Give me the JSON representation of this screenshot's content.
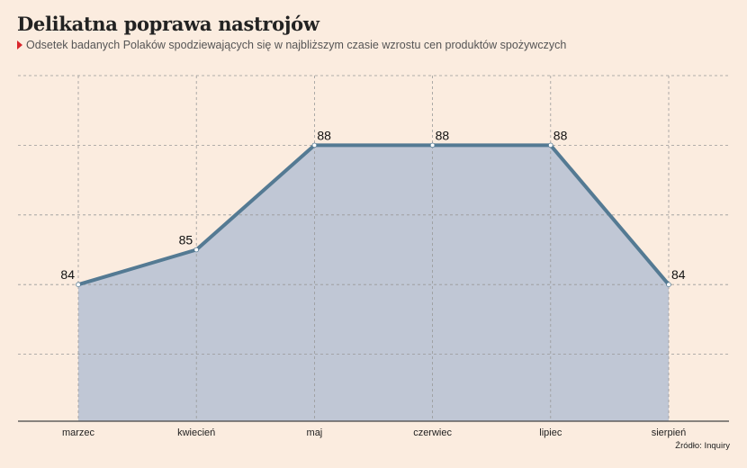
{
  "header": {
    "title": "Delikatna poprawa nastrojów",
    "subtitle": "Odsetek badanych Polaków spodziewających się w najbliższym czasie wzrostu cen produktów spożywczych",
    "marker_color": "#d9262c"
  },
  "source": "Źródło: Inquiry",
  "colors": {
    "line": "#547a93",
    "area": "#c0c7d5",
    "grid": "#999999",
    "background": "#fbecdf"
  },
  "chart_data": {
    "type": "area",
    "categories": [
      "marzec",
      "kwiecień",
      "maj",
      "czerwiec",
      "lipiec",
      "sierpień"
    ],
    "series": [
      {
        "values": [
          84,
          85,
          88,
          88,
          88,
          84
        ]
      }
    ],
    "data_labels": [
      "84",
      "85",
      "88",
      "88",
      "88",
      "84"
    ],
    "ylim": [
      80,
      90
    ],
    "y_gridlines": [
      82,
      84,
      86,
      88,
      90
    ],
    "grid": true,
    "legend": "none"
  }
}
